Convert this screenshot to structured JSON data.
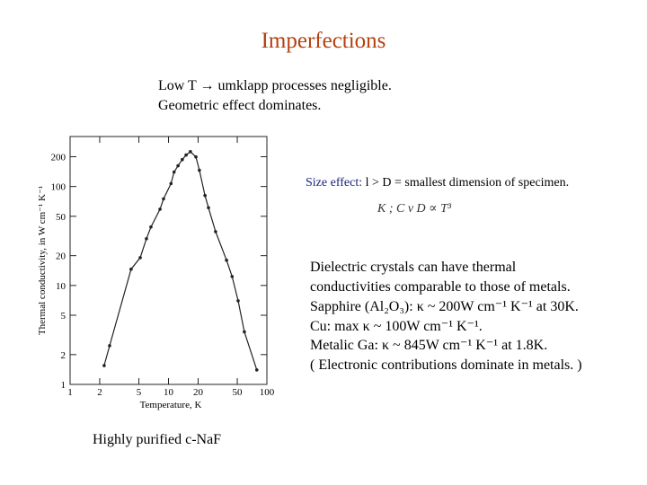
{
  "title": "Imperfections",
  "intro": [
    "Low T → umklapp processes negligible.",
    "Geometric effect dominates."
  ],
  "size_effect": {
    "label": "Size effect:",
    "text": "l > D = smallest dimension of specimen.",
    "formula": "K ; C v D ∝ T³"
  },
  "notes": [
    "Dielectric crystals can have thermal",
    "conductivities comparable to those of metals.",
    "Sapphire (Al₂O₃):  κ ~ 200W cm⁻¹ K⁻¹ at 30K.",
    "Cu:   max κ ~ 100W cm⁻¹ K⁻¹.",
    "Metalic Ga:  κ ~ 845W cm⁻¹ K⁻¹ at 1.8K.",
    "( Electronic contributions dominate in metals. )"
  ],
  "caption": "Highly purified  c-NaF",
  "chart_data": {
    "type": "scatter",
    "x_label": "Temperature, K",
    "y_label": "Thermal conductivity, in W cm⁻¹ K⁻¹",
    "x": [
      2.22,
      2.52,
      4.17,
      5.16,
      5.97,
      6.63,
      8.2,
      8.9,
      10.6,
      11.4,
      12.5,
      13.8,
      15.1,
      16.7,
      19.0,
      20.6,
      23.5,
      25.5,
      30.1,
      38.9,
      44.3,
      51,
      59,
      79
    ],
    "values": [
      1.55,
      2.46,
      14.6,
      19.1,
      29.7,
      39,
      59,
      75,
      107,
      140,
      162,
      187,
      208,
      225,
      199,
      146,
      81,
      61,
      35,
      18,
      12.3,
      7,
      3.4,
      1.4
    ],
    "color": "#222222",
    "xlim": [
      1,
      100
    ],
    "ylim": [
      1,
      320
    ],
    "xticks": [
      1,
      2,
      5,
      10,
      20,
      50,
      100
    ],
    "yticks": [
      1,
      2,
      5,
      10,
      20,
      50,
      100,
      200
    ],
    "log_x": true,
    "log_y": true,
    "connect": true
  }
}
